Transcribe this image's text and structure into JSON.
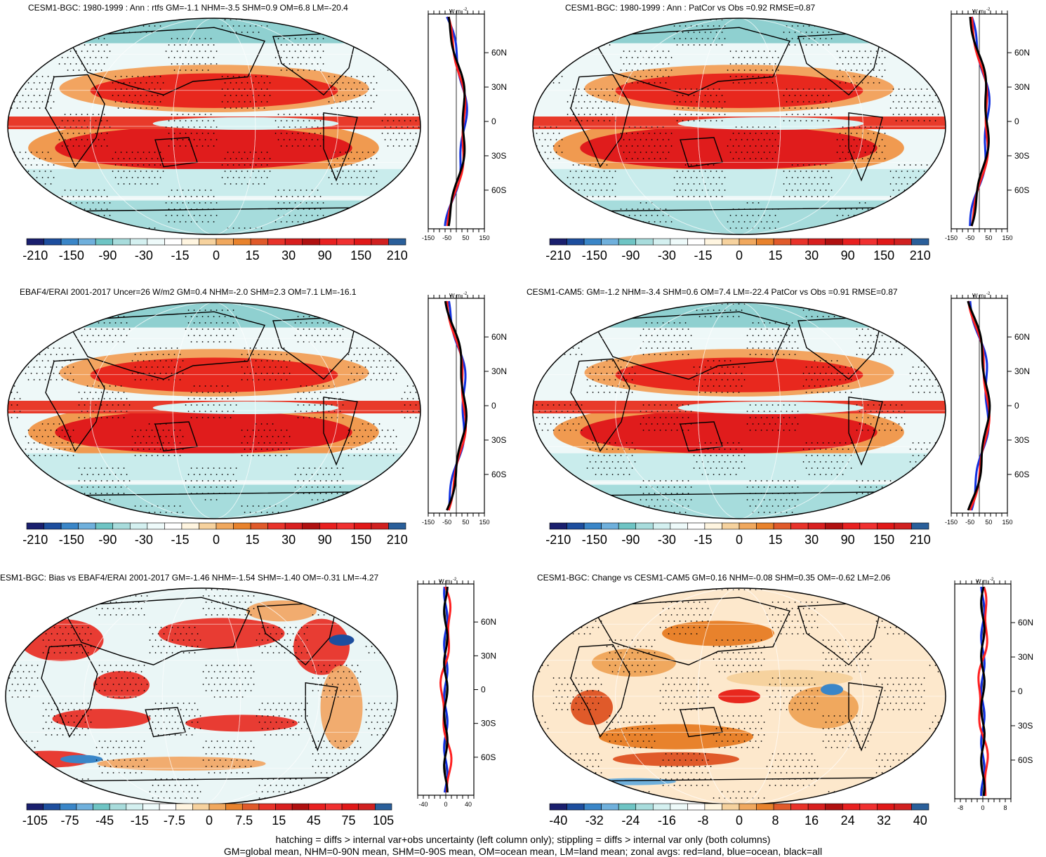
{
  "panels": [
    {
      "title": "CESM1-BGC: 1980-1999 : Ann : rtfs GM=-1.1 NHM=-3.5 SHM=0.9 OM=6.8 LM=-20.4",
      "colorbar": {
        "labels": [
          "-210",
          "-150",
          "-90",
          "-30",
          "-15",
          "0",
          "15",
          "30",
          "90",
          "150",
          "210"
        ]
      },
      "zonal": {
        "unit_label": "W m",
        "unit_sup": "-2",
        "lat_labels": [
          "60N",
          "30N",
          "0",
          "30S",
          "60S"
        ],
        "x_labels": [
          "-150",
          "-50",
          "50",
          "150"
        ]
      }
    },
    {
      "title": "CESM1-BGC: 1980-1999 : Ann : PatCor vs Obs =0.92 RMSE=0.87",
      "colorbar": {
        "labels": [
          "-210",
          "-150",
          "-90",
          "-30",
          "-15",
          "0",
          "15",
          "30",
          "90",
          "150",
          "210"
        ]
      },
      "zonal": {
        "unit_label": "W m",
        "unit_sup": "-2",
        "lat_labels": [
          "60N",
          "30N",
          "0",
          "30S",
          "60S"
        ],
        "x_labels": [
          "-150",
          "-50",
          "50",
          "150"
        ]
      }
    },
    {
      "title": "EBAF4/ERAI 2001-2017 Uncer=26 W/m2 GM=0.4 NHM=-2.0 SHM=2.3 OM=7.1 LM=-16.1",
      "colorbar": {
        "labels": [
          "-210",
          "-150",
          "-90",
          "-30",
          "-15",
          "0",
          "15",
          "30",
          "90",
          "150",
          "210"
        ]
      },
      "zonal": {
        "unit_label": "W m",
        "unit_sup": "-2",
        "lat_labels": [
          "60N",
          "30N",
          "0",
          "30S",
          "60S"
        ],
        "x_labels": [
          "-150",
          "-50",
          "50",
          "150"
        ]
      }
    },
    {
      "title": "CESM1-CAM5: GM=-1.2 NHM=-3.4 SHM=0.6 OM=7.4 LM=-22.4 PatCor vs Obs =0.91 RMSE=0.87",
      "colorbar": {
        "labels": [
          "-210",
          "-150",
          "-90",
          "-30",
          "-15",
          "0",
          "15",
          "30",
          "90",
          "150",
          "210"
        ]
      },
      "zonal": {
        "unit_label": "W m",
        "unit_sup": "-2",
        "lat_labels": [
          "60N",
          "30N",
          "0",
          "30S",
          "60S"
        ],
        "x_labels": [
          "-150",
          "-50",
          "50",
          "150"
        ]
      }
    },
    {
      "title": "ESM1-BGC: Bias vs EBAF4/ERAI 2001-2017 GM=-1.46 NHM=-1.54 SHM=-1.40 OM=-0.31 LM=-4.27",
      "colorbar": {
        "labels": [
          "-105",
          "-75",
          "-45",
          "-15",
          "-7.5",
          "0",
          "7.5",
          "15",
          "45",
          "75",
          "105"
        ]
      },
      "zonal": {
        "unit_label": "W m",
        "unit_sup": "-2",
        "lat_labels": [
          "60N",
          "30N",
          "0",
          "30S",
          "60S"
        ],
        "x_labels": [
          "-40",
          "0",
          "40"
        ]
      }
    },
    {
      "title": "CESM1-BGC: Change vs CESM1-CAM5 GM=0.16 NHM=-0.08 SHM=0.35 OM=-0.62 LM=2.06",
      "colorbar": {
        "labels": [
          "-40",
          "-32",
          "-24",
          "-16",
          "-8",
          "0",
          "8",
          "16",
          "24",
          "32",
          "40"
        ]
      },
      "zonal": {
        "unit_label": "W m",
        "unit_sup": "-2",
        "lat_labels": [
          "60N",
          "30N",
          "0",
          "30S",
          "60S"
        ],
        "x_labels": [
          "-8",
          "0",
          "8"
        ]
      }
    }
  ],
  "colors": {
    "colorbar": [
      "#1a1f6e",
      "#1d4e9e",
      "#3a86c8",
      "#6fb0dc",
      "#6ec4c4",
      "#a8dcdc",
      "#d4f0f0",
      "#eefafa",
      "#ffffff",
      "#fff5e0",
      "#f6d29e",
      "#f0a85e",
      "#e8822c",
      "#e05a2a",
      "#e8332a",
      "#d81f1f",
      "#b01010",
      "#e82020",
      "#f03030",
      "#e01818",
      "#d02020",
      "#2a5f9a"
    ],
    "land_line": "#ff2020",
    "ocean_line": "#1030e0",
    "all_line": "#000000"
  },
  "footer": {
    "line1": "hatching = diffs > internal var+obs uncertainty (left column only); stippling = diffs > internal var only (both columns)",
    "line2": "GM=global mean, NHM=0-90N mean, SHM=0-90S mean, OM=ocean mean, LM=land mean; zonal avgs: red=land, blue=ocean, black=all"
  }
}
